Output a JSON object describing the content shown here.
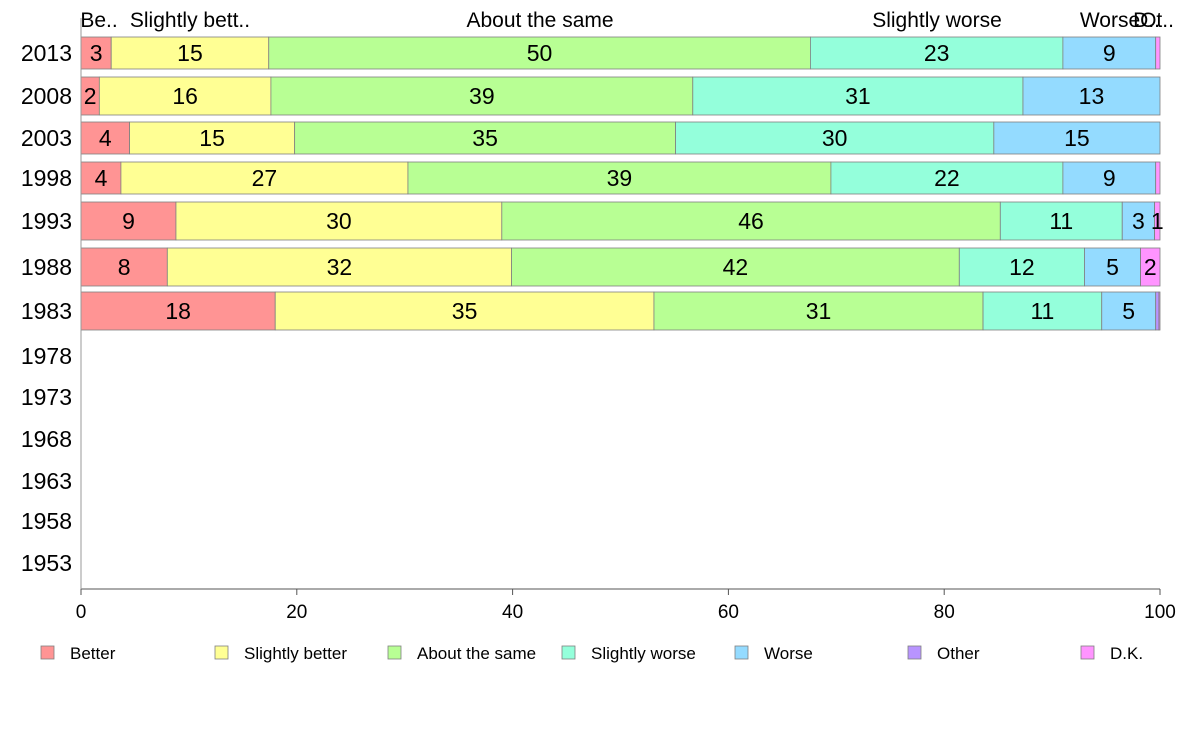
{
  "chart_data": {
    "type": "bar",
    "orientation": "horizontal",
    "stacked": true,
    "grid": false,
    "legend_position": "bottom",
    "xlim": [
      0,
      100
    ],
    "x_ticks": [
      "0",
      "20",
      "40",
      "60",
      "80",
      "100"
    ],
    "categories": [
      "2013",
      "2008",
      "2003",
      "1998",
      "1993",
      "1988",
      "1983",
      "1978",
      "1973",
      "1968",
      "1963",
      "1958",
      "1953"
    ],
    "top_labels": [
      "Be..",
      "Slightly bett..",
      "About the same",
      "Slightly worse",
      "Worse",
      "Ot..",
      "D.."
    ],
    "series": [
      {
        "name": "Better",
        "color": "#ff9494",
        "values": [
          2.8,
          1.7,
          4.5,
          3.7,
          8.8,
          8.0,
          18.0,
          null,
          null,
          null,
          null,
          null,
          null
        ],
        "labels": [
          "3",
          "2",
          "4",
          "4",
          "9",
          "8",
          "18",
          "",
          "",
          "",
          "",
          "",
          ""
        ]
      },
      {
        "name": "Slightly better",
        "color": "#ffff94",
        "values": [
          14.6,
          15.9,
          15.3,
          26.6,
          30.2,
          31.9,
          35.1,
          null,
          null,
          null,
          null,
          null,
          null
        ],
        "labels": [
          "15",
          "16",
          "15",
          "27",
          "30",
          "32",
          "35",
          "",
          "",
          "",
          "",
          "",
          ""
        ]
      },
      {
        "name": "About the same",
        "color": "#b8ff94",
        "values": [
          50.2,
          39.1,
          35.3,
          39.2,
          46.2,
          41.5,
          30.5,
          null,
          null,
          null,
          null,
          null,
          null
        ],
        "labels": [
          "50",
          "39",
          "35",
          "39",
          "46",
          "42",
          "31",
          "",
          "",
          "",
          "",
          "",
          ""
        ]
      },
      {
        "name": "Slightly worse",
        "color": "#94ffdb",
        "values": [
          23.4,
          30.6,
          29.5,
          21.5,
          11.3,
          11.6,
          11.0,
          null,
          null,
          null,
          null,
          null,
          null
        ],
        "labels": [
          "23",
          "31",
          "30",
          "22",
          "11",
          "12",
          "11",
          "",
          "",
          "",
          "",
          "",
          ""
        ]
      },
      {
        "name": "Worse",
        "color": "#94dbff",
        "values": [
          8.6,
          12.7,
          15.4,
          8.6,
          3.0,
          5.2,
          5.0,
          null,
          null,
          null,
          null,
          null,
          null
        ],
        "labels": [
          "9",
          "13",
          "15",
          "9",
          "3",
          "5",
          "5",
          "",
          "",
          "",
          "",
          "",
          ""
        ]
      },
      {
        "name": "Other",
        "color": "#b894ff",
        "values": [
          0.0,
          0.0,
          0.0,
          0.0,
          0.0,
          0.0,
          0.3,
          null,
          null,
          null,
          null,
          null,
          null
        ],
        "labels": [
          "",
          "",
          "",
          "",
          "",
          "",
          "",
          "",
          "",
          "",
          "",
          "",
          ""
        ]
      },
      {
        "name": "D.K.",
        "color": "#ff94ff",
        "values": [
          0.4,
          0.0,
          0.0,
          0.4,
          0.5,
          1.8,
          0.1,
          null,
          null,
          null,
          null,
          null,
          null
        ],
        "labels": [
          "",
          "",
          "",
          "",
          "1",
          "2",
          "",
          "",
          "",
          "",
          "",
          "",
          ""
        ]
      }
    ]
  }
}
